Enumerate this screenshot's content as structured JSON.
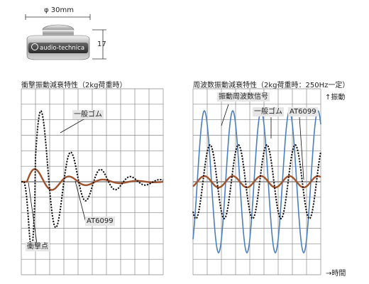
{
  "product": {
    "width_label": "φ 30mm",
    "height_label": "17",
    "brand": "audio-technica"
  },
  "left_chart": {
    "title": "衝撃振動減衰特性（2kg荷重時）",
    "callout_rubber": "一般ゴム",
    "callout_at": "AT6099",
    "callout_impact": "衝撃点"
  },
  "right_chart": {
    "title": "周波数振動減衰特性（2kg荷重時：250Hz一定）",
    "callout_signal": "振動周波数信号",
    "callout_rubber": "一般ゴム",
    "callout_at": "AT6099",
    "y_axis_label": "↑振動",
    "x_axis_label": "→時間"
  },
  "colors": {
    "at6099": "#a0522d",
    "rubber": "#111111",
    "signal": "#4a7fc1",
    "grid": "#888888"
  }
}
